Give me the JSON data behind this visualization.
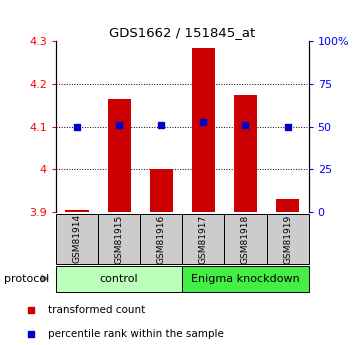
{
  "title": "GDS1662 / 151845_at",
  "samples": [
    "GSM81914",
    "GSM81915",
    "GSM81916",
    "GSM81917",
    "GSM81918",
    "GSM81919"
  ],
  "red_values": [
    3.905,
    4.165,
    4.0,
    4.285,
    4.175,
    3.93
  ],
  "blue_values_pct": [
    50,
    51,
    51,
    53,
    51,
    50
  ],
  "bar_bottom": 3.9,
  "ylim_left": [
    3.9,
    4.3
  ],
  "ylim_right": [
    0,
    100
  ],
  "yticks_left": [
    3.9,
    4.0,
    4.1,
    4.2,
    4.3
  ],
  "yticks_right": [
    0,
    25,
    50,
    75,
    100
  ],
  "ytick_labels_right": [
    "0",
    "25",
    "50",
    "75",
    "100%"
  ],
  "groups": [
    {
      "label": "control",
      "start": 0,
      "end": 3,
      "color": "#bbffbb"
    },
    {
      "label": "Enigma knockdown",
      "start": 3,
      "end": 6,
      "color": "#44ee44"
    }
  ],
  "protocol_label": "protocol",
  "legend_red": "transformed count",
  "legend_blue": "percentile rank within the sample",
  "bar_color": "#cc0000",
  "dot_color": "#0000cc",
  "bar_width": 0.55,
  "sample_box_color": "#cccccc"
}
